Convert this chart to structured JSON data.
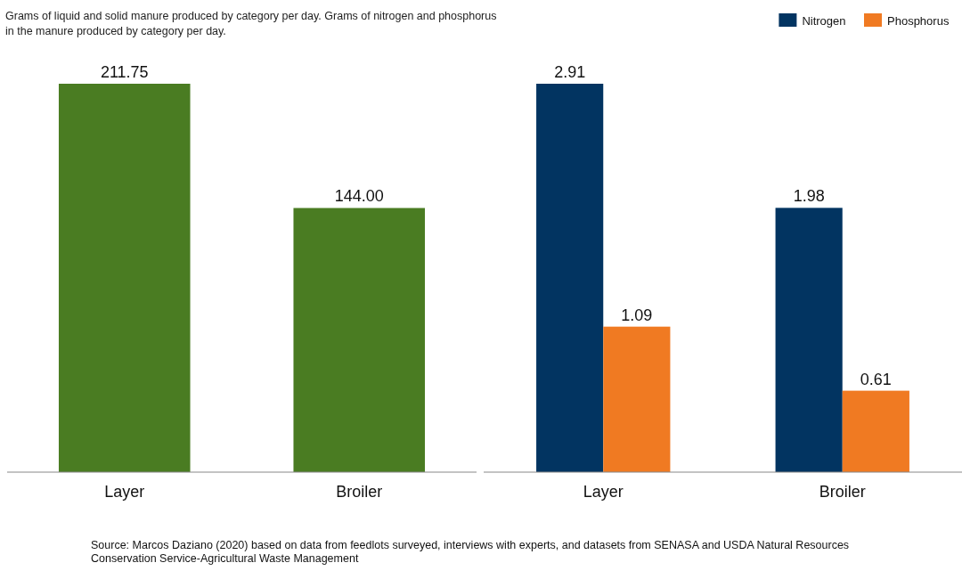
{
  "chart_data": [
    {
      "type": "bar",
      "title": "Grams of liquid and solid manure produced by category per day. Grams of nitrogen and phosphorus in the manure produced by category per day.",
      "categories": [
        "Layer",
        "Broiler"
      ],
      "values": [
        211.75,
        144.0
      ],
      "value_labels": [
        "211.75",
        "144.00"
      ],
      "color": "#4a7c22"
    },
    {
      "type": "bar",
      "categories": [
        "Layer",
        "Broiler"
      ],
      "series": [
        {
          "name": "Nitrogen",
          "color": "#023461",
          "values": [
            2.91,
            1.98
          ]
        },
        {
          "name": "Phosphorus",
          "color": "#f07a22",
          "values": [
            1.09,
            0.61
          ]
        }
      ],
      "data_labels": true,
      "legend": "top right",
      "annotations": [
        "Source: Marcos Daziano (2020) based on data from feedlots surveyed, interviews with experts, and datasets from SENASA and USDA Natural Resources Conservation Service-Agricultural Waste Management"
      ]
    }
  ]
}
